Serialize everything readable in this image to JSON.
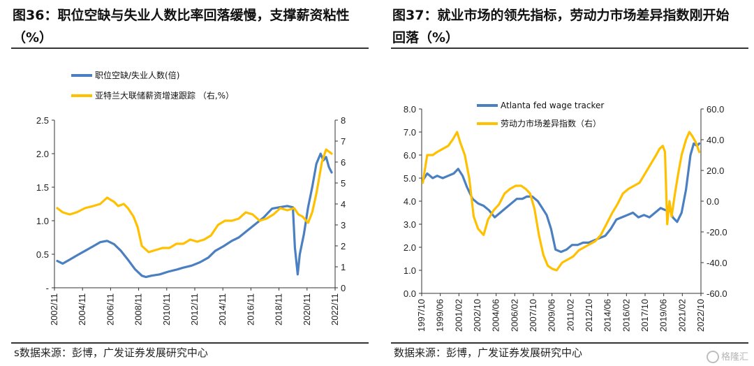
{
  "left": {
    "title": "图36：职位空缺与失业人数比率回落缓慢，支撑薪资粘性（%）",
    "source": "s数据来源：彭博，广发证券发展研究中心"
  },
  "right": {
    "title": "图37：就业市场的领先指标，劳动力市场差异指数刚开始回落（%）",
    "source": "数据来源：彭博，广发证券发展研究中心"
  },
  "watermark": "格隆汇",
  "colors": {
    "blue": "#4a7fc1",
    "gold": "#ffc000",
    "axis": "#333333"
  },
  "chart_data": [
    {
      "type": "line",
      "ylim_left": [
        0,
        2.5
      ],
      "ylim_right": [
        0,
        8
      ],
      "y_ticks_left": [
        "-",
        "0.5",
        "1.0",
        "1.5",
        "2.0",
        "2.5"
      ],
      "y_ticks_right": [
        "0",
        "1",
        "2",
        "3",
        "4",
        "5",
        "6",
        "7",
        "8"
      ],
      "x_ticks": [
        "2002/11",
        "2004/11",
        "2006/11",
        "2008/11",
        "2010/11",
        "2012/11",
        "2014/11",
        "2016/11",
        "2018/11",
        "2020/11",
        "2022/11"
      ],
      "series": [
        {
          "name": "职位空缺/失业人数(倍)",
          "axis": "left",
          "color": "#4a7fc1",
          "x": [
            2002.9,
            2003.3,
            2003.8,
            2004.3,
            2004.9,
            2005.5,
            2006.0,
            2006.5,
            2007.0,
            2007.5,
            2008.0,
            2008.5,
            2009.0,
            2009.3,
            2009.7,
            2010.3,
            2010.9,
            2011.5,
            2012.0,
            2012.6,
            2013.2,
            2013.8,
            2014.3,
            2014.9,
            2015.5,
            2016.0,
            2016.6,
            2017.2,
            2017.8,
            2018.4,
            2018.9,
            2019.5,
            2019.9,
            2020.05,
            2020.25,
            2020.4,
            2020.7,
            2021.0,
            2021.3,
            2021.6,
            2021.9,
            2022.1,
            2022.3,
            2022.5,
            2022.7
          ],
          "y": [
            0.4,
            0.36,
            0.42,
            0.48,
            0.55,
            0.62,
            0.68,
            0.7,
            0.65,
            0.55,
            0.42,
            0.28,
            0.18,
            0.16,
            0.18,
            0.2,
            0.24,
            0.27,
            0.3,
            0.33,
            0.38,
            0.45,
            0.55,
            0.62,
            0.7,
            0.75,
            0.85,
            0.95,
            1.05,
            1.18,
            1.2,
            1.22,
            1.2,
            0.6,
            0.2,
            0.5,
            0.8,
            1.2,
            1.5,
            1.85,
            2.0,
            1.9,
            1.95,
            1.8,
            1.72
          ]
        },
        {
          "name": "亚特兰大联储薪资增速跟踪 （右,%）",
          "axis": "right",
          "color": "#ffc000",
          "x": [
            2002.9,
            2003.3,
            2003.8,
            2004.3,
            2004.9,
            2005.5,
            2006.0,
            2006.5,
            2007.0,
            2007.3,
            2007.7,
            2008.0,
            2008.4,
            2008.7,
            2009.0,
            2009.5,
            2010.0,
            2010.5,
            2011.0,
            2011.5,
            2012.0,
            2012.5,
            2013.0,
            2013.5,
            2014.0,
            2014.5,
            2015.0,
            2015.5,
            2016.0,
            2016.5,
            2017.0,
            2017.5,
            2018.0,
            2018.5,
            2019.0,
            2019.5,
            2020.0,
            2020.3,
            2020.6,
            2021.0,
            2021.3,
            2021.6,
            2022.0,
            2022.3,
            2022.5,
            2022.7
          ],
          "y": [
            3.8,
            3.6,
            3.5,
            3.6,
            3.8,
            3.9,
            4.0,
            4.3,
            4.1,
            3.9,
            4.0,
            3.8,
            3.4,
            2.9,
            2.0,
            1.7,
            1.8,
            1.9,
            1.9,
            2.1,
            2.1,
            2.3,
            2.2,
            2.3,
            2.5,
            3.0,
            3.2,
            3.2,
            3.3,
            3.6,
            3.5,
            3.2,
            3.3,
            3.5,
            3.8,
            3.7,
            3.8,
            3.5,
            3.4,
            3.1,
            3.6,
            4.5,
            6.0,
            6.6,
            6.5,
            6.4
          ]
        }
      ]
    },
    {
      "type": "line",
      "ylim_left": [
        0,
        8
      ],
      "ylim_right": [
        -60,
        60
      ],
      "y_ticks_left": [
        "0.0",
        "1.0",
        "2.0",
        "3.0",
        "4.0",
        "5.0",
        "6.0",
        "7.0",
        "8.0"
      ],
      "y_ticks_right": [
        "-60.0",
        "-40.0",
        "-20.0",
        "0.0",
        "20.0",
        "40.0",
        "60.0"
      ],
      "x_ticks": [
        "1997/10",
        "1999/06",
        "2001/02",
        "2002/10",
        "2004/06",
        "2006/02",
        "2007/10",
        "2009/06",
        "2011/02",
        "2012/10",
        "2014/06",
        "2016/02",
        "2017/10",
        "2019/06",
        "2021/02",
        "2022/10"
      ],
      "series": [
        {
          "name": "Atlanta fed wage tracker",
          "axis": "left",
          "color": "#4a7fc1",
          "x": [
            1997.8,
            1998.2,
            1998.7,
            1999.1,
            1999.6,
            2000.1,
            2000.6,
            2001.0,
            2001.4,
            2001.8,
            2002.3,
            2002.8,
            2003.3,
            2003.8,
            2004.3,
            2004.8,
            2005.3,
            2005.8,
            2006.3,
            2006.8,
            2007.2,
            2007.7,
            2008.2,
            2008.6,
            2009.0,
            2009.4,
            2009.8,
            2010.3,
            2010.8,
            2011.3,
            2011.8,
            2012.3,
            2012.8,
            2013.3,
            2013.8,
            2014.3,
            2014.8,
            2015.3,
            2015.8,
            2016.3,
            2016.8,
            2017.3,
            2017.8,
            2018.3,
            2018.8,
            2019.3,
            2019.8,
            2020.1,
            2020.4,
            2020.8,
            2021.2,
            2021.6,
            2022.0,
            2022.3,
            2022.6,
            2022.8
          ],
          "y": [
            4.9,
            5.2,
            5.0,
            5.1,
            5.0,
            5.1,
            5.2,
            5.4,
            5.1,
            4.6,
            4.1,
            3.9,
            3.8,
            3.6,
            3.3,
            3.5,
            3.7,
            3.9,
            4.1,
            4.1,
            4.2,
            4.2,
            4.0,
            3.7,
            3.4,
            2.8,
            1.9,
            1.8,
            1.9,
            2.1,
            2.1,
            2.2,
            2.2,
            2.3,
            2.4,
            2.5,
            2.8,
            3.2,
            3.3,
            3.4,
            3.5,
            3.3,
            3.4,
            3.3,
            3.5,
            3.7,
            3.6,
            3.7,
            3.3,
            3.1,
            3.5,
            4.5,
            6.0,
            6.5,
            6.4,
            6.5
          ]
        },
        {
          "name": "劳动力市场差异指数（右）",
          "axis": "right",
          "color": "#ffc000",
          "x": [
            1997.8,
            1998.2,
            1998.7,
            1999.1,
            1999.6,
            2000.1,
            2000.5,
            2000.9,
            2001.2,
            2001.6,
            2002.0,
            2002.4,
            2002.8,
            2003.3,
            2003.7,
            2004.2,
            2004.7,
            2005.2,
            2005.7,
            2006.2,
            2006.7,
            2007.1,
            2007.5,
            2007.9,
            2008.3,
            2008.7,
            2009.1,
            2009.5,
            2009.9,
            2010.4,
            2010.9,
            2011.4,
            2011.9,
            2012.4,
            2012.9,
            2013.4,
            2013.9,
            2014.4,
            2014.9,
            2015.4,
            2015.9,
            2016.4,
            2016.9,
            2017.4,
            2017.9,
            2018.4,
            2018.9,
            2019.2,
            2019.5,
            2019.7,
            2019.9,
            2020.1,
            2020.3,
            2020.6,
            2020.9,
            2021.2,
            2021.6,
            2021.9,
            2022.2,
            2022.5,
            2022.8
          ],
          "y": [
            12,
            30,
            30,
            32,
            34,
            36,
            40,
            45,
            38,
            30,
            15,
            -10,
            -18,
            -22,
            -12,
            -6,
            -2,
            5,
            8,
            10,
            10,
            8,
            5,
            -5,
            -22,
            -35,
            -42,
            -44,
            -45,
            -40,
            -38,
            -36,
            -32,
            -30,
            -28,
            -26,
            -22,
            -15,
            -8,
            -2,
            5,
            8,
            10,
            12,
            18,
            24,
            30,
            34,
            36,
            32,
            -15,
            0,
            -10,
            5,
            18,
            30,
            40,
            45,
            42,
            38,
            32
          ]
        }
      ]
    }
  ]
}
